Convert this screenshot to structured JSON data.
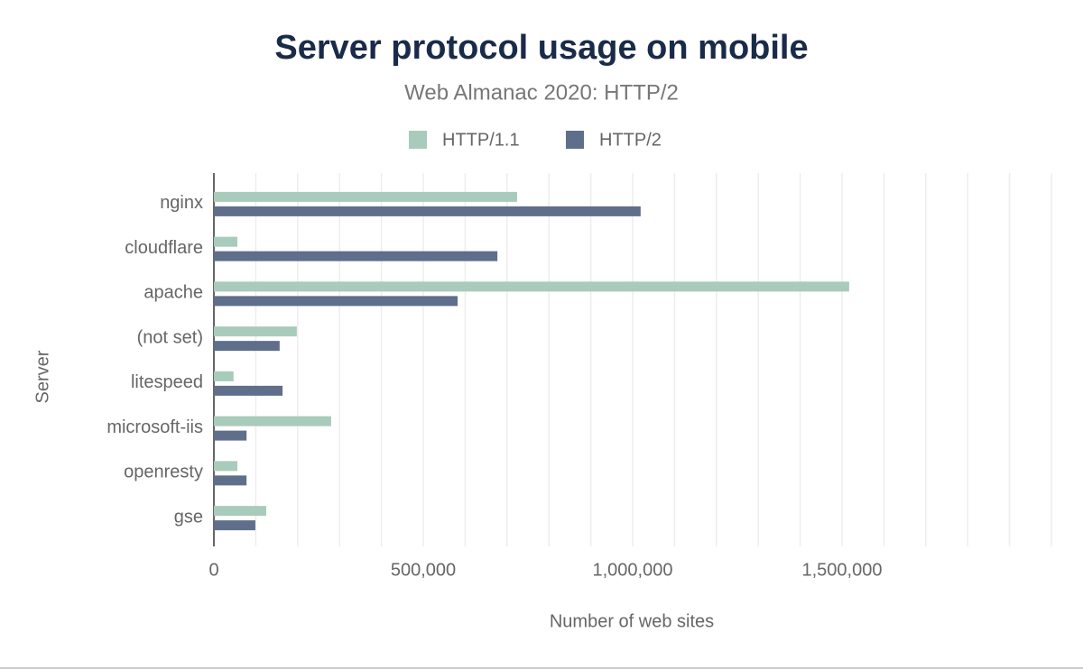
{
  "chart_data": {
    "type": "bar",
    "orientation": "horizontal",
    "title": "Server protocol usage on mobile",
    "subtitle": "Web Almanac 2020: HTTP/2",
    "x_label": "Number of web sites",
    "y_label": "Server",
    "categories": [
      "nginx",
      "cloudflare",
      "apache",
      "(not set)",
      "litespeed",
      "microsoft-iis",
      "openresty",
      "gse"
    ],
    "series": [
      {
        "name": "HTTP/1.1",
        "color": "#a8cbbb",
        "values": [
          724000,
          56000,
          1517000,
          198000,
          47000,
          280000,
          56000,
          125000
        ]
      },
      {
        "name": "HTTP/2",
        "color": "#5f6e8b",
        "values": [
          1019000,
          677000,
          582000,
          157000,
          164000,
          78000,
          78000,
          99000
        ]
      }
    ],
    "xlim": [
      0,
      2000000
    ],
    "xticks": [
      0,
      {
        "value": 500000,
        "label": "500,000"
      },
      {
        "value": 1000000,
        "label": "1,000,000"
      },
      {
        "value": 1500000,
        "label": "1,500,000"
      }
    ],
    "minor_xticks": [
      100000,
      200000,
      300000,
      400000,
      600000,
      700000,
      800000,
      900000,
      1100000,
      1200000,
      1300000,
      1400000,
      1600000,
      1700000,
      1800000,
      1900000,
      2000000
    ],
    "grid": true
  }
}
